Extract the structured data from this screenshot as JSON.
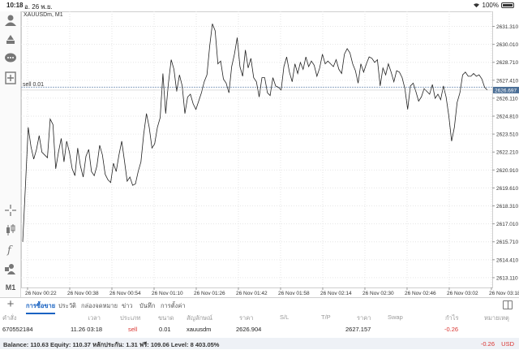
{
  "status_bar": {
    "time": "10:18",
    "date": "อ. 26 พ.ย.",
    "battery": "100%"
  },
  "toolbar": {
    "items": [
      {
        "name": "account-icon"
      },
      {
        "name": "trade-icon"
      },
      {
        "name": "chat-icon"
      },
      {
        "name": "new-order-icon"
      },
      {
        "name": "crosshair-icon"
      },
      {
        "name": "candles-icon"
      },
      {
        "name": "indicators-icon"
      },
      {
        "name": "objects-icon"
      }
    ],
    "timeframe": "M1"
  },
  "chart": {
    "symbol": "XAUUSDm, M1",
    "order_line_label": "sell 0.01",
    "current_price_label": "2626.697",
    "y_ticks": [
      "2631.310",
      "2630.010",
      "2628.710",
      "2627.410",
      "2626.110",
      "2624.810",
      "2623.510",
      "2622.210",
      "2620.910",
      "2619.610",
      "2618.310",
      "2617.010",
      "2615.710",
      "2614.410",
      "2613.110"
    ],
    "x_ticks": [
      "26 Nov 00:22",
      "26 Nov 00:38",
      "26 Nov 00:54",
      "26 Nov 01:10",
      "26 Nov 01:26",
      "26 Nov 01:42",
      "26 Nov 01:58",
      "26 Nov 02:14",
      "26 Nov 02:30",
      "26 Nov 02:46",
      "26 Nov 03:02",
      "26 Nov 03:18"
    ],
    "colors": {
      "line": "#222222",
      "grid": "#e6e6e6",
      "order_line": "#8fa8c4",
      "price_badge": "#4a6e96"
    }
  },
  "chart_data": {
    "type": "line",
    "y_range": [
      2612.4,
      2632.4
    ],
    "order_price": 2626.904,
    "current_price": 2626.697,
    "series": [
      {
        "values": [
          2615.7,
          2619.8,
          2624.0,
          2622.6,
          2621.7,
          2622.4,
          2623.4,
          2622.2,
          2622.0,
          2621.8,
          2624.6,
          2624.2,
          2621.0,
          2622.2,
          2623.2,
          2621.5,
          2623.0,
          2622.2,
          2621.0,
          2620.5,
          2622.5,
          2621.2,
          2620.4,
          2621.9,
          2622.4,
          2620.8,
          2620.5,
          2621.2,
          2622.7,
          2622.0,
          2620.6,
          2620.2,
          2620.0,
          2621.4,
          2620.8,
          2622.0,
          2623.0,
          2621.6,
          2620.1,
          2620.4,
          2619.8,
          2619.9,
          2620.8,
          2621.5,
          2623.5,
          2625.0,
          2624.0,
          2622.5,
          2622.8,
          2624.0,
          2624.7,
          2627.9,
          2625.0,
          2627.2,
          2628.9,
          2628.2,
          2626.6,
          2627.8,
          2627.0,
          2625.0,
          2626.2,
          2626.4,
          2625.7,
          2625.3,
          2625.9,
          2626.5,
          2627.3,
          2627.8,
          2629.9,
          2631.5,
          2631.0,
          2628.6,
          2628.8,
          2627.5,
          2627.2,
          2626.5,
          2628.4,
          2629.3,
          2630.5,
          2628.4,
          2627.7,
          2629.6,
          2628.3,
          2629.0,
          2627.6,
          2627.3,
          2626.2,
          2627.6,
          2627.6,
          2626.5,
          2626.3,
          2627.6,
          2627.0,
          2626.9,
          2626.7,
          2628.4,
          2629.1,
          2628.0,
          2627.3,
          2628.6,
          2627.9,
          2628.7,
          2628.2,
          2629.1,
          2628.4,
          2628.8,
          2628.5,
          2627.7,
          2628.3,
          2629.3,
          2628.6,
          2628.8,
          2628.6,
          2628.4,
          2628.9,
          2628.2,
          2627.9,
          2629.3,
          2629.7,
          2629.4,
          2628.6,
          2628.1,
          2627.2,
          2628.6,
          2628.0,
          2628.6,
          2629.1,
          2629.0,
          2628.7,
          2628.9,
          2627.0,
          2628.3,
          2627.8,
          2628.6,
          2628.0,
          2627.3,
          2628.1,
          2628.0,
          2627.6,
          2626.8,
          2625.3,
          2627.0,
          2627.2,
          2626.6,
          2625.9,
          2626.2,
          2626.8,
          2626.6,
          2626.4,
          2627.1,
          2626.1,
          2626.4,
          2626.0,
          2627.0,
          2626.2,
          2624.8,
          2623.0,
          2624.0,
          2625.8,
          2626.5,
          2627.8,
          2628.0,
          2627.7,
          2627.7,
          2627.9,
          2627.7,
          2627.8,
          2627.5,
          2626.9,
          2626.7
        ]
      }
    ]
  },
  "tabs": [
    {
      "label": "การซื้อขาย",
      "active": true
    },
    {
      "label": "ประวัติ"
    },
    {
      "label": "กล่องจดหมาย"
    },
    {
      "label": "ข่าว"
    },
    {
      "label": "บันทึก"
    },
    {
      "label": "การตั้งค่า"
    }
  ],
  "table": {
    "headers": {
      "order": "คำสั่ง",
      "time": "เวลา",
      "type": "ประเภท",
      "volume": "ขนาด",
      "symbol": "สัญลักษณ์",
      "price": "ราคา",
      "sl": "S/L",
      "tp": "T/P",
      "price2": "ราคา",
      "swap": "Swap",
      "profit": "กำไร",
      "comment": "หมายเหตุ"
    },
    "rows": [
      {
        "order": "670552184",
        "time": "11.26 03:18",
        "type": "sell",
        "volume": "0.01",
        "symbol": "xauusdm",
        "price": "2626.904",
        "sl": "",
        "tp": "",
        "price2": "2627.157",
        "swap": "",
        "profit": "-0.26",
        "comment": ""
      }
    ]
  },
  "balance": {
    "text": "Balance: 110.63 Equity: 110.37 หลักประกัน: 1.31 ฟรี: 109.06 Level: 8 403.05%",
    "profit": "-0.26",
    "currency": "USD"
  }
}
